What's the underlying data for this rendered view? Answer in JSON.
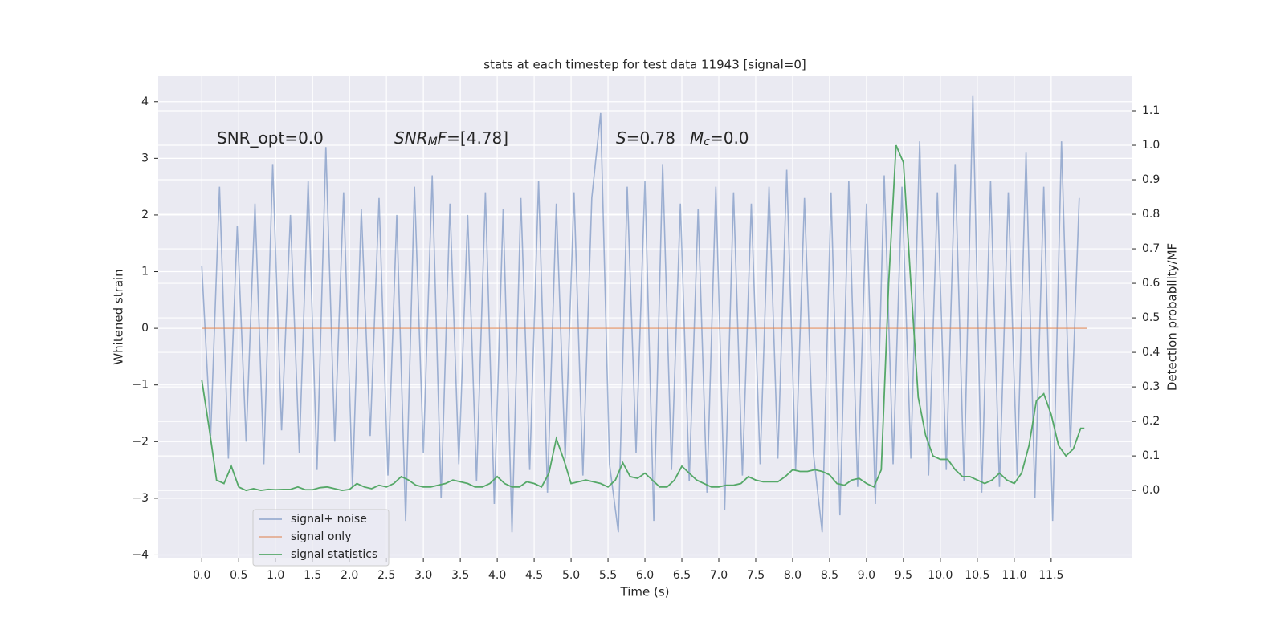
{
  "chart_data": {
    "type": "line",
    "title": "stats at each timestep for test data 11943 [signal=0]",
    "xlabel": "Time (s)",
    "ylabel": "Whitened strain",
    "y2label": "Detection probability/MF",
    "annotations": [
      [
        {
          "text": "SNR_opt=0.0"
        }
      ],
      [
        {
          "text": "SNR",
          "italic": true
        },
        {
          "text": "M",
          "italic": true,
          "sub": true
        },
        {
          "text": "F",
          "italic": true
        },
        {
          "text": "=[4.78]"
        }
      ],
      [
        {
          "text": "S",
          "italic": true
        },
        {
          "text": "=0.78"
        }
      ],
      [
        {
          "text": "M",
          "italic": true
        },
        {
          "text": "c",
          "italic": true,
          "sub": true
        },
        {
          "text": "=0.0"
        }
      ]
    ],
    "xlim": [
      -0.59,
      12.6
    ],
    "ylim": [
      -4.05,
      4.45
    ],
    "y2lim": [
      -0.195,
      1.2
    ],
    "xticks": [
      {
        "value": 0,
        "label": "0.0"
      },
      0.5,
      {
        "value": 1,
        "label": "1.0"
      },
      1.5,
      {
        "value": 2,
        "label": "2.0"
      },
      2.5,
      {
        "value": 3,
        "label": "3.0"
      },
      3.5,
      {
        "value": 4,
        "label": "4.0"
      },
      4.5,
      {
        "value": 5,
        "label": "5.0"
      },
      5.5,
      {
        "value": 6,
        "label": "6.0"
      },
      6.5,
      {
        "value": 7,
        "label": "7.0"
      },
      7.5,
      {
        "value": 8,
        "label": "8.0"
      },
      8.5,
      {
        "value": 9,
        "label": "9.0"
      },
      9.5,
      {
        "value": 10,
        "label": "10.0"
      },
      10.5,
      {
        "value": 11,
        "label": "11.0"
      },
      11.5
    ],
    "yticks": [
      {
        "value": -4,
        "label": "−4"
      },
      {
        "value": -3,
        "label": "−3"
      },
      {
        "value": -2,
        "label": "−2"
      },
      {
        "value": -1,
        "label": "−1"
      },
      0,
      1,
      2,
      3,
      4
    ],
    "y2ticks": [
      {
        "value": 0,
        "label": "0.0"
      },
      0.1,
      0.2,
      0.3,
      0.4,
      0.5,
      0.6,
      0.7,
      0.8,
      0.9,
      {
        "value": 1,
        "label": "1.0"
      },
      1.1
    ],
    "grid": true,
    "legend": "lower left",
    "series": [
      {
        "name": "signal+ noise",
        "color": "#4c72b0",
        "x": [
          0,
          0.12,
          0.24,
          0.36,
          0.48,
          0.6,
          0.72,
          0.84,
          0.96,
          1.08,
          1.2,
          1.32,
          1.44,
          1.56,
          1.68,
          1.8,
          1.92,
          2.04,
          2.16,
          2.28,
          2.4,
          2.52,
          2.64,
          2.76,
          2.88,
          3.0,
          3.12,
          3.24,
          3.36,
          3.48,
          3.6,
          3.72,
          3.84,
          3.96,
          4.08,
          4.2,
          4.32,
          4.44,
          4.56,
          4.68,
          4.8,
          4.92,
          5.04,
          5.16,
          5.28,
          5.4,
          5.52,
          5.64,
          5.76,
          5.88,
          6.0,
          6.12,
          6.24,
          6.36,
          6.48,
          6.6,
          6.72,
          6.84,
          6.96,
          7.08,
          7.2,
          7.32,
          7.44,
          7.56,
          7.68,
          7.8,
          7.92,
          8.04,
          8.16,
          8.28,
          8.4,
          8.52,
          8.64,
          8.76,
          8.88,
          9.0,
          9.12,
          9.24,
          9.36,
          9.48,
          9.6,
          9.72,
          9.84,
          9.96,
          10.08,
          10.2,
          10.32,
          10.44,
          10.56,
          10.68,
          10.8,
          10.92,
          11.04,
          11.16,
          11.28,
          11.4,
          11.52,
          11.64,
          11.76,
          11.88
        ],
        "values": [
          1.1,
          -1.9,
          2.5,
          -2.3,
          1.8,
          -2.0,
          2.2,
          -2.4,
          2.9,
          -1.8,
          2.0,
          -2.2,
          2.6,
          -2.5,
          3.2,
          -2.0,
          2.4,
          -2.8,
          2.1,
          -1.9,
          2.3,
          -2.6,
          2.0,
          -3.4,
          2.5,
          -2.2,
          2.7,
          -3.0,
          2.2,
          -2.4,
          2.0,
          -2.7,
          2.4,
          -3.1,
          2.1,
          -3.6,
          2.3,
          -2.5,
          2.6,
          -2.9,
          2.2,
          -2.3,
          2.4,
          -2.6,
          2.3,
          3.8,
          -2.4,
          -3.6,
          2.5,
          -2.2,
          2.6,
          -3.4,
          2.9,
          -2.5,
          2.2,
          -2.7,
          2.1,
          -2.9,
          2.5,
          -3.2,
          2.4,
          -2.6,
          2.2,
          -2.4,
          2.5,
          -2.3,
          2.8,
          -2.5,
          2.3,
          -2.2,
          -3.6,
          2.4,
          -3.3,
          2.6,
          -2.8,
          2.2,
          -3.1,
          2.7,
          -2.4,
          2.5,
          -2.3,
          3.3,
          -2.6,
          2.4,
          -2.5,
          2.9,
          -2.7,
          4.1,
          -2.9,
          2.6,
          -2.8,
          2.4,
          -2.6,
          3.1,
          -3.0,
          2.5,
          -3.4,
          3.3,
          -2.1,
          2.3
        ]
      },
      {
        "name": "signal only",
        "color": "#dd8452",
        "x": [
          0,
          11.99
        ],
        "values": [
          0,
          0
        ]
      },
      {
        "name": "signal statistics",
        "color": "#55a868",
        "axis": "y2",
        "x": [
          0,
          0.1,
          0.2,
          0.3,
          0.4,
          0.5,
          0.6,
          0.7,
          0.8,
          0.9,
          1.0,
          1.1,
          1.2,
          1.3,
          1.4,
          1.5,
          1.6,
          1.7,
          1.8,
          1.9,
          2.0,
          2.1,
          2.2,
          2.3,
          2.4,
          2.5,
          2.6,
          2.7,
          2.8,
          2.9,
          3.0,
          3.1,
          3.2,
          3.3,
          3.4,
          3.5,
          3.6,
          3.7,
          3.8,
          3.9,
          4.0,
          4.1,
          4.2,
          4.3,
          4.4,
          4.5,
          4.6,
          4.7,
          4.8,
          4.9,
          5.0,
          5.1,
          5.2,
          5.3,
          5.4,
          5.5,
          5.6,
          5.7,
          5.8,
          5.9,
          6.0,
          6.1,
          6.2,
          6.3,
          6.4,
          6.5,
          6.6,
          6.7,
          6.8,
          6.9,
          7.0,
          7.1,
          7.2,
          7.3,
          7.4,
          7.5,
          7.6,
          7.7,
          7.8,
          7.9,
          8.0,
          8.1,
          8.2,
          8.3,
          8.4,
          8.5,
          8.6,
          8.7,
          8.8,
          8.9,
          9.0,
          9.1,
          9.2,
          9.3,
          9.4,
          9.5,
          9.6,
          9.7,
          9.8,
          9.9,
          10.0,
          10.1,
          10.2,
          10.3,
          10.4,
          10.5,
          10.6,
          10.7,
          10.8,
          10.9,
          11.0,
          11.1,
          11.2,
          11.3,
          11.4,
          11.5,
          11.6,
          11.7,
          11.8,
          11.9,
          11.95
        ],
        "values": [
          0.32,
          0.18,
          0.03,
          0.02,
          0.07,
          0.01,
          0.0,
          0.005,
          0.0,
          0.003,
          0.002,
          0.003,
          0.003,
          0.01,
          0.002,
          0.002,
          0.008,
          0.01,
          0.005,
          0.0,
          0.003,
          0.02,
          0.01,
          0.005,
          0.015,
          0.01,
          0.02,
          0.04,
          0.03,
          0.015,
          0.01,
          0.01,
          0.015,
          0.02,
          0.03,
          0.025,
          0.02,
          0.01,
          0.01,
          0.02,
          0.04,
          0.02,
          0.01,
          0.01,
          0.025,
          0.02,
          0.01,
          0.05,
          0.15,
          0.09,
          0.02,
          0.025,
          0.03,
          0.025,
          0.02,
          0.01,
          0.03,
          0.08,
          0.04,
          0.035,
          0.05,
          0.03,
          0.01,
          0.01,
          0.03,
          0.07,
          0.05,
          0.03,
          0.02,
          0.01,
          0.01,
          0.015,
          0.015,
          0.02,
          0.04,
          0.03,
          0.025,
          0.025,
          0.025,
          0.04,
          0.06,
          0.055,
          0.055,
          0.06,
          0.055,
          0.045,
          0.02,
          0.015,
          0.03,
          0.035,
          0.02,
          0.01,
          0.06,
          0.6,
          1.0,
          0.95,
          0.6,
          0.27,
          0.16,
          0.1,
          0.09,
          0.09,
          0.06,
          0.04,
          0.04,
          0.03,
          0.02,
          0.03,
          0.05,
          0.03,
          0.02,
          0.05,
          0.13,
          0.26,
          0.28,
          0.22,
          0.13,
          0.1,
          0.12,
          0.18,
          0.18
        ]
      }
    ]
  }
}
